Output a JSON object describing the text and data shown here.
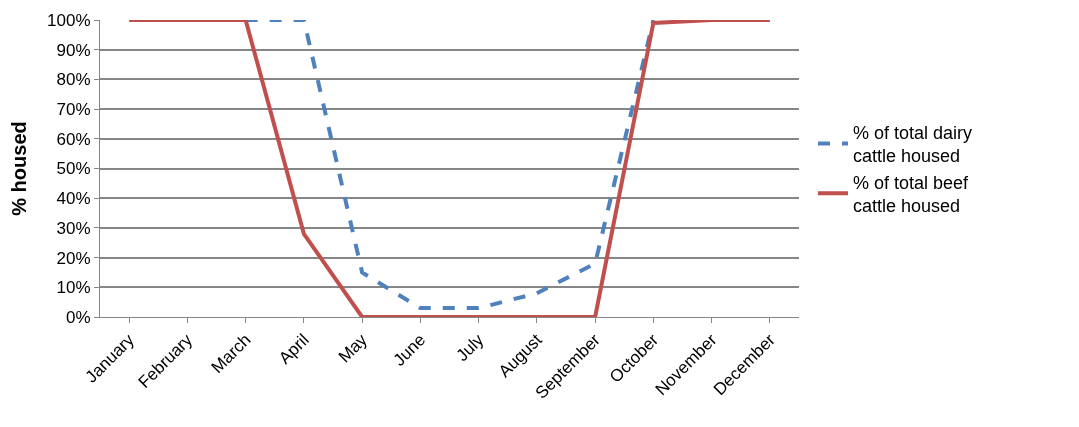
{
  "chart_data": {
    "type": "line",
    "ylabel": "% housed",
    "categories": [
      "January",
      "February",
      "March",
      "April",
      "May",
      "June",
      "July",
      "August",
      "September",
      "October",
      "November",
      "December"
    ],
    "series": [
      {
        "name": "% of total dairy cattle housed",
        "color": "#4f81bd",
        "line_style": "dashed",
        "values": [
          null,
          null,
          100,
          100,
          15,
          3,
          3,
          8,
          18,
          100,
          null,
          null
        ]
      },
      {
        "name": "% of total beef cattle housed",
        "color": "#c0504d",
        "line_style": "solid",
        "values": [
          100,
          100,
          100,
          28,
          0,
          0,
          0,
          0,
          0,
          99,
          100,
          100
        ]
      }
    ],
    "ylim": [
      0,
      100
    ],
    "yticks": [
      {
        "value": 0,
        "label": "0%"
      },
      {
        "value": 10,
        "label": "10%"
      },
      {
        "value": 20,
        "label": "20%"
      },
      {
        "value": 30,
        "label": "30%"
      },
      {
        "value": 40,
        "label": "40%"
      },
      {
        "value": 50,
        "label": "50%"
      },
      {
        "value": 60,
        "label": "60%"
      },
      {
        "value": 70,
        "label": "70%"
      },
      {
        "value": 80,
        "label": "80%"
      },
      {
        "value": 90,
        "label": "90%"
      },
      {
        "value": 100,
        "label": "100%"
      }
    ],
    "grid": "y",
    "legend": "right",
    "marker": "none"
  }
}
